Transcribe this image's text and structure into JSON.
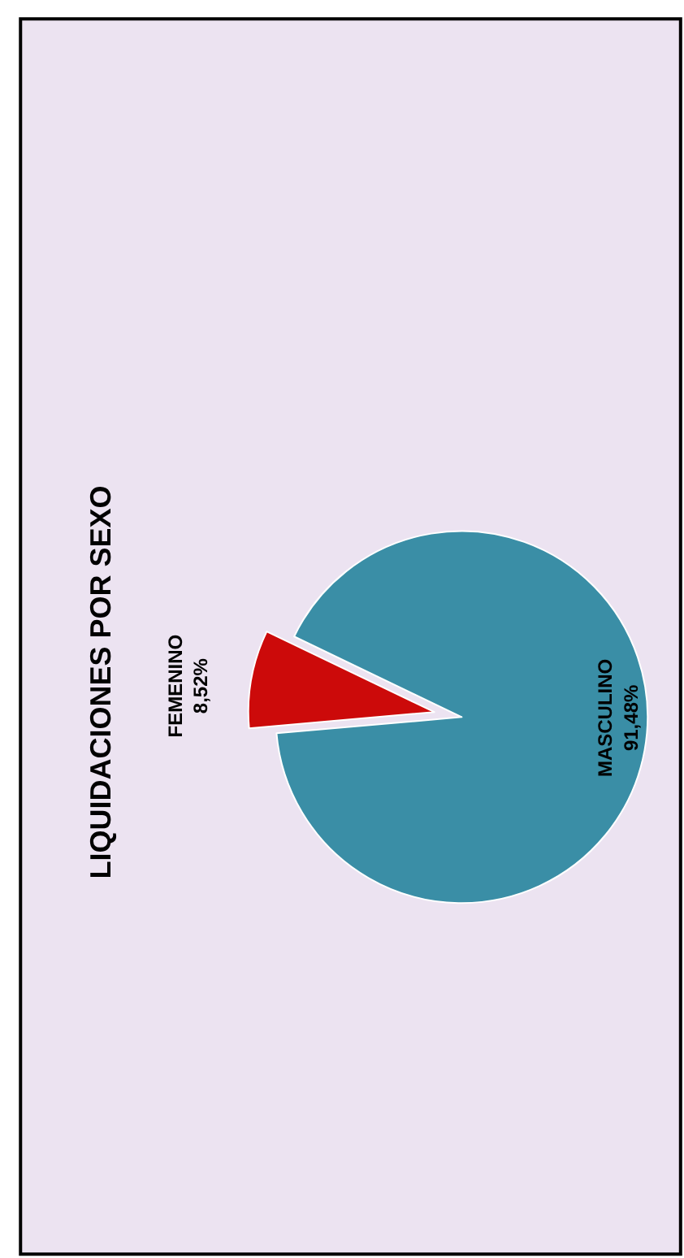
{
  "chart_data": {
    "type": "pie",
    "title": "LIQUIDACIONES POR SEXO",
    "categories": [
      "FEMENINO",
      "MASCULINO"
    ],
    "values": [
      8.52,
      91.48
    ],
    "value_labels": [
      "8,52%",
      "91,48%"
    ],
    "colors": [
      "#cc0a0a",
      "#3a8ea6"
    ],
    "legend": false
  }
}
